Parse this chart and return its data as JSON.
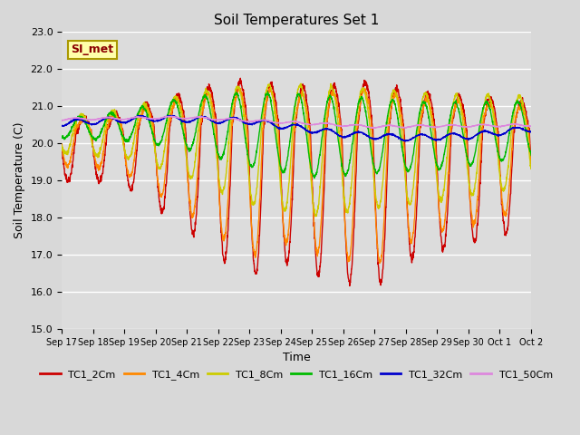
{
  "title": "Soil Temperatures Set 1",
  "xlabel": "Time",
  "ylabel": "Soil Temperature (C)",
  "ylim": [
    15.0,
    23.0
  ],
  "yticks": [
    15.0,
    16.0,
    17.0,
    18.0,
    19.0,
    20.0,
    21.0,
    22.0,
    23.0
  ],
  "xtick_labels": [
    "Sep 17",
    "Sep 18",
    "Sep 19",
    "Sep 20",
    "Sep 21",
    "Sep 22",
    "Sep 23",
    "Sep 24",
    "Sep 25",
    "Sep 26",
    "Sep 27",
    "Sep 28",
    "Sep 29",
    "Sep 30",
    "Oct 1",
    "Oct 2"
  ],
  "series_names": [
    "TC1_2Cm",
    "TC1_4Cm",
    "TC1_8Cm",
    "TC1_16Cm",
    "TC1_32Cm",
    "TC1_50Cm"
  ],
  "series_colors": [
    "#cc0000",
    "#ff8800",
    "#cccc00",
    "#00bb00",
    "#0000cc",
    "#dd88dd"
  ],
  "background_color": "#dcdcdc",
  "grid_color": "#ffffff",
  "annotation_text": "SI_met",
  "figsize": [
    6.4,
    4.8
  ],
  "dpi": 100
}
